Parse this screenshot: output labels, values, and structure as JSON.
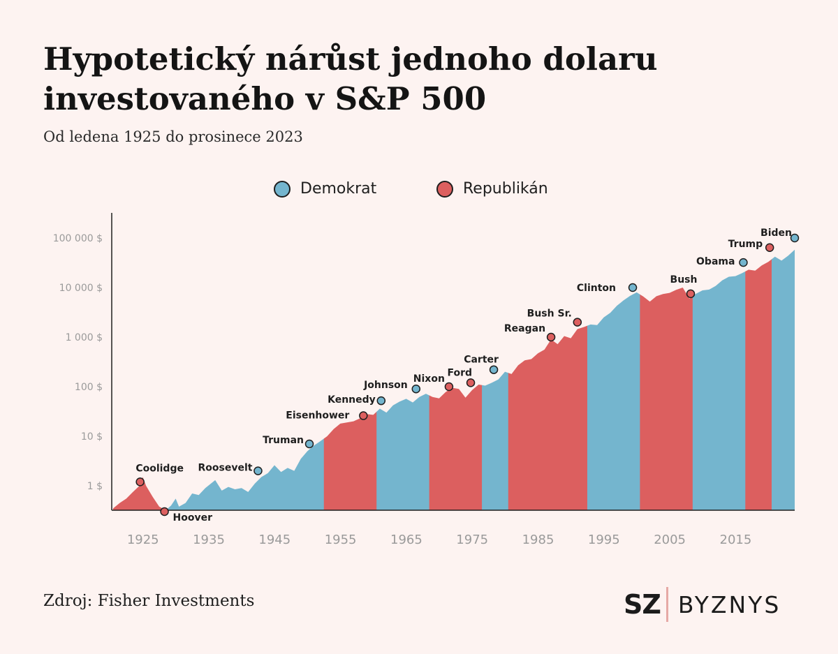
{
  "title": "Hypotetický nárůst jednoho dolaru investovaného v S&P 500",
  "subtitle": "Od ledena 1925 do prosinece 2023",
  "source": "Zdroj: Fisher Investments",
  "brand": {
    "mark": "SZ",
    "name": "BYZNYS"
  },
  "colors": {
    "democrat": "#74b5ce",
    "republican": "#dc5f5f",
    "background": "#fdf3f1"
  },
  "legend": [
    {
      "label": "Demokrat",
      "party": "D"
    },
    {
      "label": "Republikán",
      "party": "R"
    }
  ],
  "chart_data": {
    "type": "area",
    "y_scale": "log",
    "ylim": [
      0.3,
      200000
    ],
    "xlim": [
      1921,
      2024.5
    ],
    "y_ticks": [
      {
        "value": 1,
        "label": "1 $"
      },
      {
        "value": 10,
        "label": "10 $"
      },
      {
        "value": 100,
        "label": "100 $"
      },
      {
        "value": 1000,
        "label": "1 000 $"
      },
      {
        "value": 10000,
        "label": "10 000 $"
      },
      {
        "value": 100000,
        "label": "100 000 $"
      }
    ],
    "x_ticks": [
      1925,
      1935,
      1945,
      1955,
      1965,
      1975,
      1985,
      1995,
      2005,
      2015
    ],
    "grid": false,
    "legend_position": "top-center",
    "series": [
      {
        "x": 1921.0,
        "y": 0.35
      },
      {
        "x": 1922.0,
        "y": 0.45
      },
      {
        "x": 1923.0,
        "y": 0.55
      },
      {
        "x": 1924.0,
        "y": 0.75
      },
      {
        "x": 1925.0,
        "y": 1.0
      },
      {
        "x": 1925.5,
        "y": 1.5
      },
      {
        "x": 1926.0,
        "y": 1.0
      },
      {
        "x": 1927.0,
        "y": 0.6
      },
      {
        "x": 1928.0,
        "y": 0.38
      },
      {
        "x": 1929.0,
        "y": 0.3
      },
      {
        "x": 1929.8,
        "y": 0.4
      },
      {
        "x": 1930.5,
        "y": 0.55
      },
      {
        "x": 1931.0,
        "y": 0.38
      },
      {
        "x": 1932.0,
        "y": 0.45
      },
      {
        "x": 1933.0,
        "y": 0.7
      },
      {
        "x": 1934.0,
        "y": 0.65
      },
      {
        "x": 1935.0,
        "y": 0.9
      },
      {
        "x": 1936.5,
        "y": 1.3
      },
      {
        "x": 1937.5,
        "y": 0.8
      },
      {
        "x": 1938.5,
        "y": 0.95
      },
      {
        "x": 1939.5,
        "y": 0.85
      },
      {
        "x": 1940.5,
        "y": 0.9
      },
      {
        "x": 1941.5,
        "y": 0.75
      },
      {
        "x": 1942.5,
        "y": 1.1
      },
      {
        "x": 1943.5,
        "y": 1.5
      },
      {
        "x": 1944.5,
        "y": 1.8
      },
      {
        "x": 1945.5,
        "y": 2.6
      },
      {
        "x": 1946.5,
        "y": 1.9
      },
      {
        "x": 1947.5,
        "y": 2.3
      },
      {
        "x": 1948.5,
        "y": 2.0
      },
      {
        "x": 1949.5,
        "y": 3.5
      },
      {
        "x": 1950.5,
        "y": 5.0
      },
      {
        "x": 1951.5,
        "y": 6.5
      },
      {
        "x": 1952.5,
        "y": 8.0
      },
      {
        "x": 1953.5,
        "y": 10.0
      },
      {
        "x": 1954.5,
        "y": 14.0
      },
      {
        "x": 1955.5,
        "y": 18.0
      },
      {
        "x": 1956.5,
        "y": 19.0
      },
      {
        "x": 1957.5,
        "y": 20.0
      },
      {
        "x": 1958.5,
        "y": 23.0
      },
      {
        "x": 1959.5,
        "y": 28.0
      },
      {
        "x": 1960.5,
        "y": 27.0
      },
      {
        "x": 1961.5,
        "y": 36.0
      },
      {
        "x": 1962.5,
        "y": 30.0
      },
      {
        "x": 1963.5,
        "y": 42.0
      },
      {
        "x": 1964.5,
        "y": 50.0
      },
      {
        "x": 1965.5,
        "y": 57.0
      },
      {
        "x": 1966.5,
        "y": 48.0
      },
      {
        "x": 1967.5,
        "y": 62.0
      },
      {
        "x": 1968.5,
        "y": 72.0
      },
      {
        "x": 1969.5,
        "y": 62.0
      },
      {
        "x": 1970.5,
        "y": 58.0
      },
      {
        "x": 1971.5,
        "y": 78.0
      },
      {
        "x": 1972.5,
        "y": 95.0
      },
      {
        "x": 1973.5,
        "y": 90.0
      },
      {
        "x": 1974.5,
        "y": 60.0
      },
      {
        "x": 1975.5,
        "y": 85.0
      },
      {
        "x": 1976.5,
        "y": 110.0
      },
      {
        "x": 1977.5,
        "y": 105.0
      },
      {
        "x": 1978.5,
        "y": 120.0
      },
      {
        "x": 1979.5,
        "y": 140.0
      },
      {
        "x": 1980.5,
        "y": 200.0
      },
      {
        "x": 1981.5,
        "y": 180.0
      },
      {
        "x": 1982.5,
        "y": 270.0
      },
      {
        "x": 1983.5,
        "y": 340.0
      },
      {
        "x": 1984.5,
        "y": 360.0
      },
      {
        "x": 1985.5,
        "y": 470.0
      },
      {
        "x": 1986.5,
        "y": 560.0
      },
      {
        "x": 1987.5,
        "y": 900.0
      },
      {
        "x": 1988.5,
        "y": 720.0
      },
      {
        "x": 1989.5,
        "y": 1050.0
      },
      {
        "x": 1990.5,
        "y": 950.0
      },
      {
        "x": 1991.5,
        "y": 1450.0
      },
      {
        "x": 1992.5,
        "y": 1600.0
      },
      {
        "x": 1993.5,
        "y": 1800.0
      },
      {
        "x": 1994.5,
        "y": 1750.0
      },
      {
        "x": 1995.5,
        "y": 2500.0
      },
      {
        "x": 1996.5,
        "y": 3100.0
      },
      {
        "x": 1997.5,
        "y": 4300.0
      },
      {
        "x": 1998.5,
        "y": 5500.0
      },
      {
        "x": 1999.5,
        "y": 6800.0
      },
      {
        "x": 2000.5,
        "y": 8000.0
      },
      {
        "x": 2001.5,
        "y": 6600.0
      },
      {
        "x": 2002.5,
        "y": 5200.0
      },
      {
        "x": 2003.5,
        "y": 6700.0
      },
      {
        "x": 2004.5,
        "y": 7400.0
      },
      {
        "x": 2005.5,
        "y": 7800.0
      },
      {
        "x": 2006.5,
        "y": 9000.0
      },
      {
        "x": 2007.5,
        "y": 10000.0
      },
      {
        "x": 2008.5,
        "y": 6000.0
      },
      {
        "x": 2009.5,
        "y": 7500.0
      },
      {
        "x": 2010.5,
        "y": 8800.0
      },
      {
        "x": 2011.5,
        "y": 9100.0
      },
      {
        "x": 2012.5,
        "y": 10800.0
      },
      {
        "x": 2013.5,
        "y": 14000.0
      },
      {
        "x": 2014.5,
        "y": 16500.0
      },
      {
        "x": 2015.5,
        "y": 17000.0
      },
      {
        "x": 2016.5,
        "y": 19500.0
      },
      {
        "x": 2017.5,
        "y": 23000.0
      },
      {
        "x": 2018.5,
        "y": 22000.0
      },
      {
        "x": 2019.5,
        "y": 28000.0
      },
      {
        "x": 2020.5,
        "y": 33000.0
      },
      {
        "x": 2021.5,
        "y": 42000.0
      },
      {
        "x": 2022.5,
        "y": 35000.0
      },
      {
        "x": 2023.5,
        "y": 44000.0
      },
      {
        "x": 2024.5,
        "y": 58000.0
      }
    ],
    "terms": [
      {
        "start": 1921,
        "end": 1929,
        "party": "R"
      },
      {
        "start": 1929,
        "end": 1953,
        "party": "D"
      },
      {
        "start": 1953,
        "end": 1961,
        "party": "R"
      },
      {
        "start": 1961,
        "end": 1969,
        "party": "D"
      },
      {
        "start": 1969,
        "end": 1977,
        "party": "R"
      },
      {
        "start": 1977,
        "end": 1981,
        "party": "D"
      },
      {
        "start": 1981,
        "end": 1993,
        "party": "R"
      },
      {
        "start": 1993,
        "end": 2001,
        "party": "D"
      },
      {
        "start": 2001,
        "end": 2009,
        "party": "R"
      },
      {
        "start": 2009,
        "end": 2017,
        "party": "D"
      },
      {
        "start": 2017,
        "end": 2021,
        "party": "R"
      },
      {
        "start": 2021,
        "end": 2024.5,
        "party": "D"
      }
    ],
    "presidents": [
      {
        "name": "Coolidge",
        "x": 1925.1,
        "y": 1.2,
        "party": "R",
        "label_pos": "above"
      },
      {
        "name": "Hoover",
        "x": 1928.8,
        "y": 0.3,
        "party": "R",
        "label_pos": "below-right"
      },
      {
        "name": "Roosevelt",
        "x": 1943.0,
        "y": 2.0,
        "party": "D",
        "label_pos": "left"
      },
      {
        "name": "Truman",
        "x": 1950.8,
        "y": 7.0,
        "party": "D",
        "label_pos": "left"
      },
      {
        "name": "Eisenhower",
        "x": 1959.0,
        "y": 26.0,
        "party": "R",
        "label_pos": "left"
      },
      {
        "name": "Kennedy",
        "x": 1961.7,
        "y": 52.0,
        "party": "D",
        "label_pos": "left"
      },
      {
        "name": "Johnson",
        "x": 1967.0,
        "y": 90.0,
        "party": "D",
        "label_pos": "upper-left"
      },
      {
        "name": "Nixon",
        "x": 1972.0,
        "y": 100.0,
        "party": "R",
        "label_pos": "upper-left"
      },
      {
        "name": "Ford",
        "x": 1975.3,
        "y": 120.0,
        "party": "R",
        "label_pos": "upper-left"
      },
      {
        "name": "Carter",
        "x": 1978.8,
        "y": 220.0,
        "party": "D",
        "label_pos": "above"
      },
      {
        "name": "Reagan",
        "x": 1987.5,
        "y": 1000.0,
        "party": "R",
        "label_pos": "upper-left"
      },
      {
        "name": "Bush Sr.",
        "x": 1991.5,
        "y": 2000.0,
        "party": "R",
        "label_pos": "upper-left"
      },
      {
        "name": "Clinton",
        "x": 1999.9,
        "y": 10000.0,
        "party": "D",
        "label_pos": "left"
      },
      {
        "name": "Bush",
        "x": 2008.7,
        "y": 7500.0,
        "party": "R",
        "label_pos": "upper-left"
      },
      {
        "name": "Obama",
        "x": 2016.7,
        "y": 32000.0,
        "party": "D",
        "label_pos": "left"
      },
      {
        "name": "Trump",
        "x": 2020.7,
        "y": 64000.0,
        "party": "R",
        "label_pos": "upper-left"
      },
      {
        "name": "Biden",
        "x": 2024.5,
        "y": 100000.0,
        "party": "D",
        "label_pos": "upper-left"
      }
    ]
  }
}
